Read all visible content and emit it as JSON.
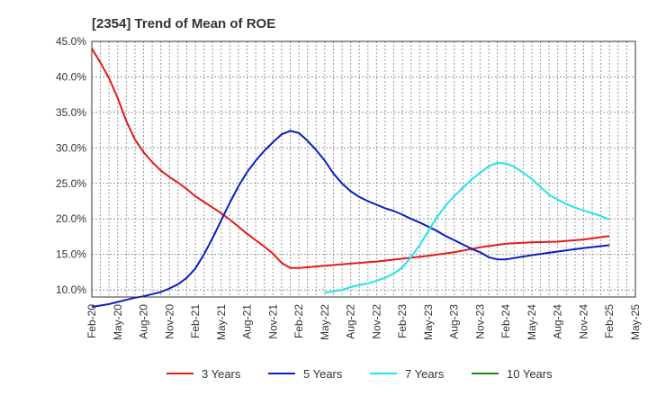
{
  "chart_data": {
    "type": "line",
    "title": "[2354]  Trend of Mean of ROE",
    "xlabel": "",
    "ylabel": "",
    "y_unit": "%",
    "ylim": [
      9,
      45
    ],
    "y_ticks": [
      "45.0%",
      "40.0%",
      "35.0%",
      "30.0%",
      "25.0%",
      "20.0%",
      "15.0%",
      "10.0%"
    ],
    "y_tick_values": [
      45,
      40,
      35,
      30,
      25,
      20,
      15,
      10
    ],
    "x_ticks": [
      "Feb-20",
      "May-20",
      "Aug-20",
      "Nov-20",
      "Feb-21",
      "May-21",
      "Aug-21",
      "Nov-21",
      "Feb-22",
      "May-22",
      "Aug-22",
      "Nov-22",
      "Feb-23",
      "May-23",
      "Aug-23",
      "Nov-23",
      "Feb-24",
      "May-24",
      "Aug-24",
      "Nov-24",
      "Feb-25",
      "May-25"
    ],
    "grid": true,
    "legend_position": "bottom",
    "series": [
      {
        "name": "3 Years",
        "color": "#e31a1c",
        "points": [
          [
            "Feb-20",
            44.0
          ],
          [
            "Mar-20",
            42.0
          ],
          [
            "Apr-20",
            39.8
          ],
          [
            "May-20",
            37.0
          ],
          [
            "Jun-20",
            33.8
          ],
          [
            "Jul-20",
            31.2
          ],
          [
            "Aug-20",
            29.4
          ],
          [
            "Sep-20",
            28.0
          ],
          [
            "Oct-20",
            26.8
          ],
          [
            "Nov-20",
            25.9
          ],
          [
            "Dec-20",
            25.1
          ],
          [
            "Jan-21",
            24.2
          ],
          [
            "Feb-21",
            23.2
          ],
          [
            "Mar-21",
            22.4
          ],
          [
            "Apr-21",
            21.6
          ],
          [
            "May-21",
            20.8
          ],
          [
            "Jun-21",
            19.9
          ],
          [
            "Jul-21",
            18.9
          ],
          [
            "Aug-21",
            17.9
          ],
          [
            "Sep-21",
            17.0
          ],
          [
            "Oct-21",
            16.1
          ],
          [
            "Nov-21",
            15.1
          ],
          [
            "Dec-21",
            13.8
          ],
          [
            "Jan-22",
            13.1
          ],
          [
            "Feb-22",
            13.1
          ],
          [
            "May-22",
            13.4
          ],
          [
            "Aug-22",
            13.7
          ],
          [
            "Nov-22",
            14.0
          ],
          [
            "Feb-23",
            14.4
          ],
          [
            "May-23",
            14.8
          ],
          [
            "Aug-23",
            15.3
          ],
          [
            "Nov-23",
            16.0
          ],
          [
            "Feb-24",
            16.5
          ],
          [
            "May-24",
            16.7
          ],
          [
            "Aug-24",
            16.8
          ],
          [
            "Nov-24",
            17.1
          ],
          [
            "Feb-25",
            17.6
          ]
        ]
      },
      {
        "name": "5 Years",
        "color": "#0a1fbf",
        "points": [
          [
            "Feb-20",
            7.6
          ],
          [
            "Mar-20",
            7.8
          ],
          [
            "Apr-20",
            8.0
          ],
          [
            "May-20",
            8.3
          ],
          [
            "Jun-20",
            8.6
          ],
          [
            "Jul-20",
            8.9
          ],
          [
            "Aug-20",
            9.1
          ],
          [
            "Sep-20",
            9.4
          ],
          [
            "Oct-20",
            9.7
          ],
          [
            "Nov-20",
            10.2
          ],
          [
            "Dec-20",
            10.8
          ],
          [
            "Jan-21",
            11.7
          ],
          [
            "Feb-21",
            13.0
          ],
          [
            "Mar-21",
            15.0
          ],
          [
            "Apr-21",
            17.3
          ],
          [
            "May-21",
            19.8
          ],
          [
            "Jun-21",
            22.3
          ],
          [
            "Jul-21",
            24.6
          ],
          [
            "Aug-21",
            26.6
          ],
          [
            "Sep-21",
            28.2
          ],
          [
            "Oct-21",
            29.6
          ],
          [
            "Nov-21",
            30.8
          ],
          [
            "Dec-21",
            31.9
          ],
          [
            "Jan-22",
            32.4
          ],
          [
            "Feb-22",
            32.1
          ],
          [
            "Mar-22",
            31.0
          ],
          [
            "Apr-22",
            29.7
          ],
          [
            "May-22",
            28.2
          ],
          [
            "Jun-22",
            26.4
          ],
          [
            "Jul-22",
            25.0
          ],
          [
            "Aug-22",
            23.9
          ],
          [
            "Sep-22",
            23.1
          ],
          [
            "Oct-22",
            22.5
          ],
          [
            "Nov-22",
            22.0
          ],
          [
            "Dec-22",
            21.5
          ],
          [
            "Jan-23",
            21.1
          ],
          [
            "Feb-23",
            20.6
          ],
          [
            "Mar-23",
            20.0
          ],
          [
            "Apr-23",
            19.5
          ],
          [
            "May-23",
            18.9
          ],
          [
            "Jun-23",
            18.3
          ],
          [
            "Jul-23",
            17.6
          ],
          [
            "Aug-23",
            17.0
          ],
          [
            "Sep-23",
            16.4
          ],
          [
            "Oct-23",
            15.8
          ],
          [
            "Nov-23",
            15.3
          ],
          [
            "Dec-23",
            14.6
          ],
          [
            "Jan-24",
            14.3
          ],
          [
            "Feb-24",
            14.3
          ],
          [
            "May-24",
            14.9
          ],
          [
            "Aug-24",
            15.4
          ],
          [
            "Nov-24",
            15.9
          ],
          [
            "Feb-25",
            16.3
          ]
        ]
      },
      {
        "name": "7 Years",
        "color": "#22e3eb",
        "points": [
          [
            "May-22",
            9.6
          ],
          [
            "Jun-22",
            9.8
          ],
          [
            "Jul-22",
            10.0
          ],
          [
            "Aug-22",
            10.4
          ],
          [
            "Sep-22",
            10.7
          ],
          [
            "Oct-22",
            10.9
          ],
          [
            "Nov-22",
            11.3
          ],
          [
            "Dec-22",
            11.7
          ],
          [
            "Jan-23",
            12.3
          ],
          [
            "Feb-23",
            13.2
          ],
          [
            "Mar-23",
            14.6
          ],
          [
            "Apr-23",
            16.3
          ],
          [
            "May-23",
            18.3
          ],
          [
            "Jun-23",
            20.2
          ],
          [
            "Jul-23",
            21.9
          ],
          [
            "Aug-23",
            23.2
          ],
          [
            "Sep-23",
            24.4
          ],
          [
            "Oct-23",
            25.5
          ],
          [
            "Nov-23",
            26.5
          ],
          [
            "Dec-23",
            27.4
          ],
          [
            "Jan-24",
            27.9
          ],
          [
            "Feb-24",
            27.8
          ],
          [
            "Mar-24",
            27.3
          ],
          [
            "Apr-24",
            26.5
          ],
          [
            "May-24",
            25.6
          ],
          [
            "Jun-24",
            24.5
          ],
          [
            "Jul-24",
            23.4
          ],
          [
            "Aug-24",
            22.7
          ],
          [
            "Sep-24",
            22.1
          ],
          [
            "Oct-24",
            21.6
          ],
          [
            "Nov-24",
            21.2
          ],
          [
            "Dec-24",
            20.8
          ],
          [
            "Jan-25",
            20.4
          ],
          [
            "Feb-25",
            19.9
          ]
        ]
      },
      {
        "name": "10 Years",
        "color": "#1a8a1a",
        "points": []
      }
    ]
  }
}
